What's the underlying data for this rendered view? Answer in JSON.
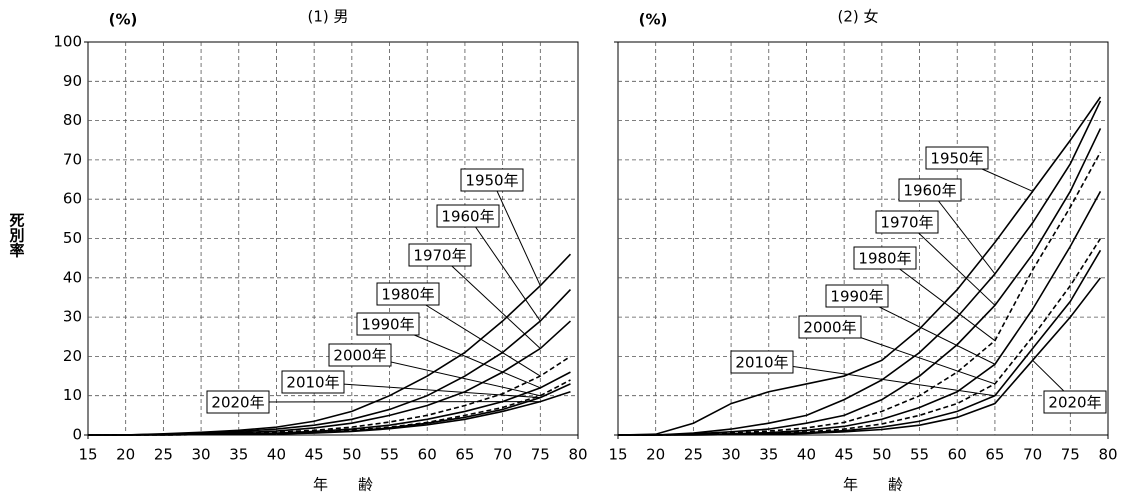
{
  "chart_data": [
    {
      "type": "line",
      "title": "(1) 男",
      "unit": "(%)",
      "ylabel": "死別率",
      "xlabel": "年　　齢",
      "x": [
        15,
        20,
        25,
        30,
        35,
        40,
        45,
        50,
        55,
        60,
        65,
        70,
        75,
        79
      ],
      "xlim": [
        15,
        80
      ],
      "xticks": [
        15,
        20,
        25,
        30,
        35,
        40,
        45,
        50,
        55,
        60,
        65,
        70,
        75,
        80
      ],
      "ylim": [
        0,
        100
      ],
      "yticks": [
        0,
        10,
        20,
        30,
        40,
        50,
        60,
        70,
        80,
        90,
        100
      ],
      "grid": true,
      "series": [
        {
          "name": "1950年",
          "color": "#000000",
          "dashed": false,
          "values": [
            0,
            0,
            0.3,
            0.7,
            1.2,
            2,
            3.5,
            6,
            10,
            15,
            21,
            29,
            38,
            46
          ]
        },
        {
          "name": "1960年",
          "color": "#000000",
          "dashed": false,
          "values": [
            0,
            0,
            0.2,
            0.5,
            0.9,
            1.5,
            2.5,
            4,
            6.5,
            10,
            15,
            21,
            29,
            37
          ]
        },
        {
          "name": "1970年",
          "color": "#000000",
          "dashed": false,
          "values": [
            0,
            0,
            0.1,
            0.3,
            0.6,
            1,
            1.8,
            3,
            5,
            7.5,
            11,
            16,
            22,
            29
          ]
        },
        {
          "name": "1980年",
          "color": "#000000",
          "dashed": true,
          "values": [
            0,
            0,
            0.1,
            0.2,
            0.4,
            0.7,
            1.2,
            2,
            3.3,
            5,
            7.5,
            10.5,
            15,
            20
          ]
        },
        {
          "name": "1990年",
          "color": "#000000",
          "dashed": false,
          "values": [
            0,
            0,
            0.1,
            0.2,
            0.3,
            0.5,
            0.9,
            1.5,
            2.5,
            4,
            6,
            8.5,
            12,
            16
          ]
        },
        {
          "name": "2000年",
          "color": "#000000",
          "dashed": true,
          "values": [
            0,
            0,
            0,
            0.1,
            0.2,
            0.4,
            0.7,
            1.2,
            2,
            3.2,
            5,
            7,
            10,
            14
          ]
        },
        {
          "name": "2010年",
          "color": "#000000",
          "dashed": false,
          "values": [
            0,
            0,
            0,
            0.1,
            0.2,
            0.3,
            0.6,
            1,
            1.8,
            3,
            4.5,
            6.5,
            9.5,
            13
          ]
        },
        {
          "name": "2020年",
          "color": "#000000",
          "dashed": false,
          "values": [
            0,
            0,
            0,
            0.1,
            0.1,
            0.3,
            0.5,
            0.9,
            1.6,
            2.6,
            4,
            6,
            8.5,
            11
          ]
        }
      ]
    },
    {
      "type": "line",
      "title": "(2) 女",
      "unit": "(%)",
      "xlabel": "年　　齢",
      "x": [
        15,
        20,
        25,
        30,
        35,
        40,
        45,
        50,
        55,
        60,
        65,
        70,
        75,
        79
      ],
      "xlim": [
        15,
        80
      ],
      "xticks": [
        15,
        20,
        25,
        30,
        35,
        40,
        45,
        50,
        55,
        60,
        65,
        70,
        75,
        80
      ],
      "ylim": [
        0,
        100
      ],
      "yticks": [
        0,
        10,
        20,
        30,
        40,
        50,
        60,
        70,
        80,
        90,
        100
      ],
      "grid": true,
      "series": [
        {
          "name": "1950年",
          "color": "#000000",
          "dashed": false,
          "values": [
            0,
            0.2,
            3,
            8,
            11,
            13,
            15,
            19,
            27,
            37,
            49,
            62,
            75,
            86
          ]
        },
        {
          "name": "1960年",
          "color": "#000000",
          "dashed": false,
          "values": [
            0,
            0,
            0.5,
            1.5,
            3,
            5,
            9,
            14,
            21,
            30,
            41,
            54,
            69,
            85
          ]
        },
        {
          "name": "1970年",
          "color": "#000000",
          "dashed": false,
          "values": [
            0,
            0,
            0.3,
            0.8,
            1.5,
            3,
            5,
            9,
            15,
            23,
            33,
            46,
            62,
            78
          ]
        },
        {
          "name": "1980年",
          "color": "#000000",
          "dashed": true,
          "values": [
            0,
            0,
            0.2,
            0.5,
            1,
            1.8,
            3.2,
            6,
            10,
            16,
            24,
            42,
            58,
            72
          ]
        },
        {
          "name": "1990年",
          "color": "#000000",
          "dashed": false,
          "values": [
            0,
            0,
            0.1,
            0.3,
            0.6,
            1.2,
            2.2,
            4,
            7,
            11,
            18,
            32,
            48,
            62
          ]
        },
        {
          "name": "2000年",
          "color": "#000000",
          "dashed": true,
          "values": [
            0,
            0,
            0.1,
            0.2,
            0.4,
            0.8,
            1.5,
            2.8,
            5,
            8,
            13,
            25,
            38,
            50
          ]
        },
        {
          "name": "2010年",
          "color": "#000000",
          "dashed": false,
          "values": [
            0,
            0,
            0,
            0.1,
            0.3,
            0.6,
            1.1,
            2,
            3.5,
            6,
            10,
            22,
            34,
            47
          ]
        },
        {
          "name": "2020年",
          "color": "#000000",
          "dashed": false,
          "values": [
            0,
            0,
            0,
            0.1,
            0.2,
            0.4,
            0.8,
            1.4,
            2.5,
            4.5,
            8,
            19,
            30,
            40
          ]
        }
      ]
    }
  ]
}
